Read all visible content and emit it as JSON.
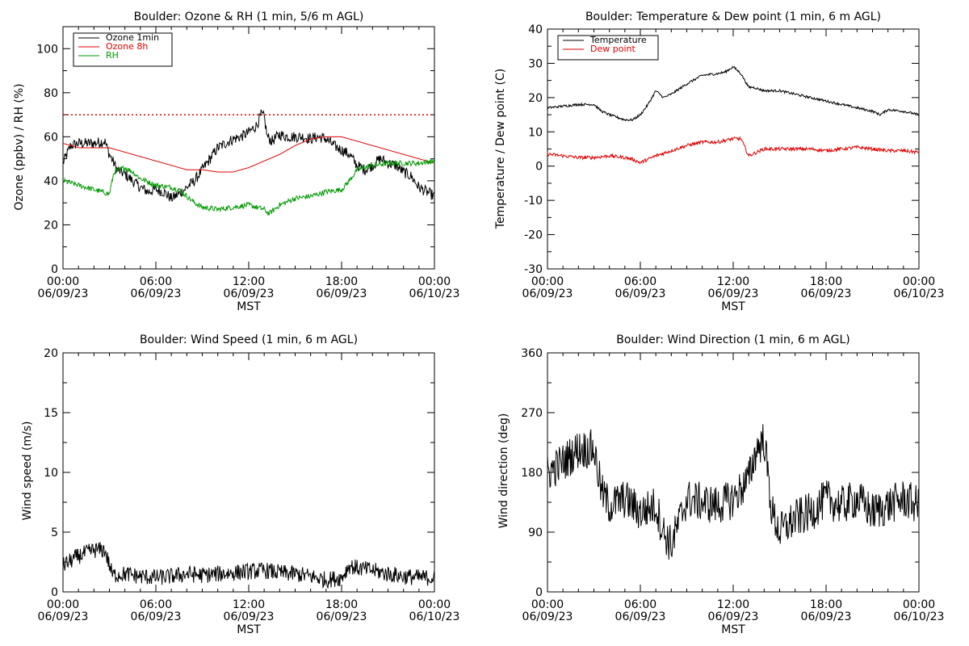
{
  "colors": {
    "black": "#000000",
    "red": "#e00000",
    "green": "#009900"
  },
  "x_ticks": [
    {
      "time": "00:00",
      "date": "06/09/23"
    },
    {
      "time": "06:00",
      "date": "06/09/23"
    },
    {
      "time": "12:00",
      "date": "06/09/23"
    },
    {
      "time": "18:00",
      "date": "06/09/23"
    },
    {
      "time": "00:00",
      "date": "06/10/23"
    }
  ],
  "x_label": "MST",
  "chart_data": [
    {
      "type": "line",
      "title": "Boulder: Ozone & RH (1 min, 5/6 m AGL)",
      "xlabel": "MST",
      "ylabel": "Ozone (ppbv) / RH (%)",
      "xlim": [
        "06/09/23 00:00",
        "06/10/23 00:00"
      ],
      "ylim": [
        0,
        110
      ],
      "yticks": [
        0,
        20,
        40,
        60,
        80,
        100
      ],
      "legend_placement": "top-left",
      "reference_line": {
        "y": 70,
        "color": "red",
        "style": "dotted"
      },
      "series": [
        {
          "name": "Ozone 1min",
          "color": "black",
          "noise": 2.5,
          "x": [
            0,
            0.5,
            1,
            2,
            2.7,
            3,
            3.5,
            4,
            5,
            5.5,
            6,
            6.5,
            7,
            7.5,
            8,
            8.5,
            9,
            9.5,
            10,
            10.5,
            11,
            11.5,
            12,
            12.5,
            12.8,
            13,
            13.2,
            13.5,
            14,
            14.5,
            15,
            15.5,
            16,
            16.5,
            17,
            17.5,
            18,
            18.5,
            19,
            19.5,
            20,
            20.5,
            21,
            21.5,
            22,
            22.5,
            23,
            23.5,
            24
          ],
          "y": [
            48,
            56,
            57,
            57,
            58,
            52,
            45,
            43,
            37,
            35,
            36,
            35,
            32,
            34,
            37,
            40,
            45,
            50,
            55,
            57,
            59,
            60,
            62,
            65,
            70,
            69,
            60,
            58,
            61,
            60,
            60,
            60,
            59,
            60,
            59,
            56,
            54,
            52,
            47,
            45,
            47,
            50,
            48,
            47,
            44,
            42,
            37,
            35,
            33
          ]
        },
        {
          "name": "Ozone 8h",
          "color": "red",
          "noise": 0,
          "x": [
            0,
            1,
            2,
            3,
            4,
            5,
            6,
            7,
            8,
            9,
            10,
            11,
            12,
            13,
            14,
            15,
            16,
            17,
            18,
            19,
            20,
            21,
            22,
            23,
            24
          ],
          "y": [
            57,
            55,
            55,
            55,
            53,
            51,
            49,
            47,
            45,
            45,
            44,
            44,
            46,
            49,
            52,
            56,
            59,
            60,
            60,
            58,
            56,
            54,
            52,
            50,
            48
          ]
        },
        {
          "name": "RH",
          "color": "green",
          "noise": 1.2,
          "x": [
            0,
            1,
            2,
            3,
            3.3,
            4,
            4.5,
            5,
            6,
            7,
            7.5,
            8,
            8.5,
            9,
            10,
            11,
            12,
            13,
            13.3,
            14,
            15,
            16,
            17,
            18,
            18.5,
            19,
            20,
            21,
            22,
            23,
            24
          ],
          "y": [
            40,
            38,
            36,
            34,
            44,
            46,
            44,
            41,
            38,
            37,
            36,
            33,
            30,
            28,
            27,
            28,
            29,
            27,
            25,
            29,
            32,
            33,
            35,
            36,
            40,
            45,
            47,
            48,
            48,
            48,
            49
          ]
        }
      ]
    },
    {
      "type": "line",
      "title": "Boulder: Temperature & Dew point (1 min, 6 m AGL)",
      "xlabel": "MST",
      "ylabel": "Temperature / Dew point (C)",
      "xlim": [
        "06/09/23 00:00",
        "06/10/23 00:00"
      ],
      "ylim": [
        -30,
        40
      ],
      "yticks": [
        -30,
        -20,
        -10,
        0,
        10,
        20,
        30,
        40
      ],
      "legend_placement": "top-left",
      "series": [
        {
          "name": "Temperature",
          "color": "black",
          "noise": 0.35,
          "x": [
            0,
            1,
            2,
            3,
            3.5,
            4,
            5,
            5.5,
            6,
            6.5,
            7,
            7.5,
            8,
            9,
            10,
            11,
            11.5,
            12,
            12.5,
            13,
            13.3,
            14,
            15,
            16,
            17,
            18,
            19,
            20,
            21,
            21.5,
            22,
            23,
            24
          ],
          "y": [
            17,
            17.5,
            18,
            18,
            16,
            15,
            13.5,
            13.5,
            15,
            18,
            22,
            20,
            21,
            24,
            26.5,
            27,
            27.5,
            29,
            27,
            23,
            23,
            22,
            22,
            21,
            20,
            19,
            18,
            17,
            16,
            15,
            16.5,
            16,
            15
          ]
        },
        {
          "name": "Dew point",
          "color": "red",
          "noise": 0.5,
          "x": [
            0,
            1,
            2,
            3,
            4,
            5,
            5.5,
            6,
            7,
            8,
            9,
            10,
            11,
            12,
            12.5,
            13,
            13.5,
            14,
            15,
            16,
            17,
            18,
            19,
            20,
            21,
            22,
            23,
            24
          ],
          "y": [
            3.5,
            3,
            2.5,
            2.5,
            3,
            2.5,
            2,
            1,
            3,
            4.5,
            6,
            7,
            7,
            8,
            8,
            3,
            4,
            5,
            5,
            5,
            5,
            4.5,
            5,
            5.5,
            5,
            4.5,
            4.5,
            4
          ]
        }
      ]
    },
    {
      "type": "line",
      "title": "Boulder: Wind Speed (1 min, 6 m AGL)",
      "xlabel": "MST",
      "ylabel": "Wind speed (m/s)",
      "xlim": [
        "06/09/23 00:00",
        "06/10/23 00:00"
      ],
      "ylim": [
        0,
        20
      ],
      "yticks": [
        0,
        5,
        10,
        15,
        20
      ],
      "series": [
        {
          "name": "",
          "color": "black",
          "noise": 0.7,
          "x": [
            0,
            1,
            2,
            2.7,
            3.2,
            4,
            5,
            6,
            7,
            8,
            9,
            10,
            11,
            12,
            13,
            14,
            15,
            16,
            17,
            18,
            18.5,
            19,
            20,
            21,
            22,
            23,
            24
          ],
          "y": [
            2.2,
            3,
            3.5,
            3.5,
            1.4,
            1.5,
            1.3,
            1.2,
            1.3,
            1.5,
            1.4,
            1.5,
            1.6,
            1.7,
            1.8,
            1.6,
            1.5,
            1.3,
            1,
            1.2,
            2.2,
            2,
            1.8,
            1.5,
            1.3,
            1.2,
            1.2
          ]
        }
      ]
    },
    {
      "type": "line",
      "title": "Boulder: Wind Direction (1 min, 6 m AGL)",
      "xlabel": "MST",
      "ylabel": "Wind direction (deg)",
      "xlim": [
        "06/09/23 00:00",
        "06/10/23 00:00"
      ],
      "ylim": [
        0,
        360
      ],
      "yticks": [
        0,
        90,
        180,
        270,
        360
      ],
      "series": [
        {
          "name": "",
          "color": "black",
          "noise": 30,
          "x": [
            0,
            1,
            2,
            3,
            3.5,
            4,
            5,
            6,
            7,
            7.5,
            8,
            9,
            10,
            11,
            12,
            13,
            13.5,
            14,
            14.5,
            15,
            16,
            17,
            18,
            19,
            20,
            21,
            22,
            23,
            24
          ],
          "y": [
            180,
            195,
            215,
            215,
            150,
            130,
            140,
            120,
            130,
            90,
            70,
            140,
            135,
            130,
            140,
            170,
            215,
            230,
            120,
            90,
            110,
            120,
            140,
            130,
            140,
            120,
            130,
            140,
            130
          ]
        }
      ]
    }
  ]
}
